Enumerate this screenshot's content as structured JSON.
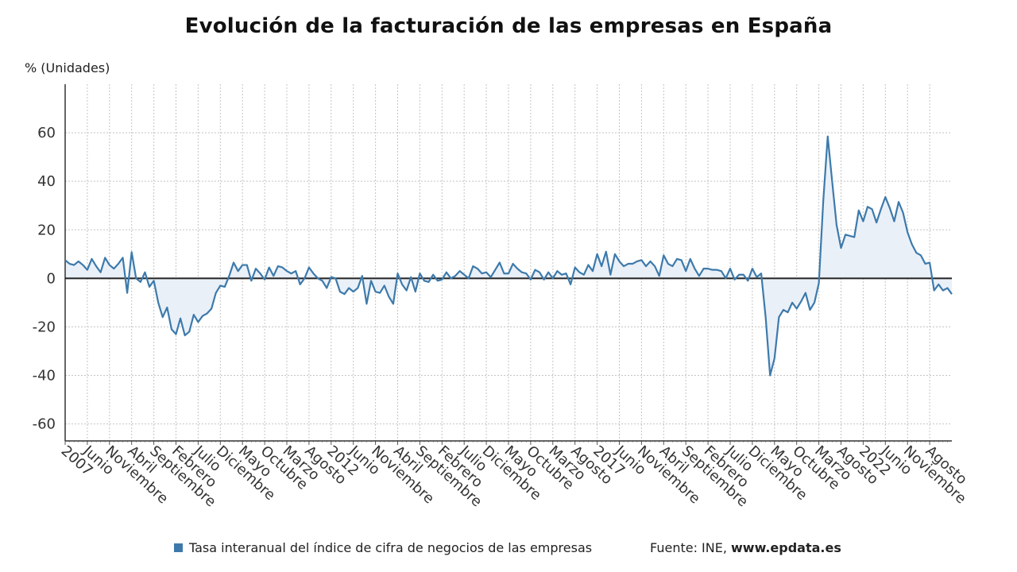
{
  "chart_data": {
    "type": "area",
    "title": "Evolución de la facturación de las empresas en España",
    "ylabel": "% (Unidades)",
    "ylim": [
      -67,
      80
    ],
    "yticks": [
      60,
      40,
      20,
      0,
      -20,
      -40,
      -60
    ],
    "grid": true,
    "start": "2007-01",
    "x_tick_labels": [
      "2007",
      "Junio",
      "Noviembre",
      "Abril",
      "Septiembre",
      "Febrero",
      "Julio",
      "Diciembre",
      "Mayo",
      "Octubre",
      "Marzo",
      "Agosto",
      "2012",
      "Junio",
      "Noviembre",
      "Abril",
      "Septiembre",
      "Febrero",
      "Julio",
      "Diciembre",
      "Mayo",
      "Octubre",
      "Marzo",
      "Agosto",
      "2017",
      "Junio",
      "Noviembre",
      "Abril",
      "Septiembre",
      "Febrero",
      "Julio",
      "Diciembre",
      "Mayo",
      "Octubre",
      "Marzo",
      "Agosto",
      "2022",
      "Junio",
      "Noviembre",
      "Agosto"
    ],
    "series": [
      {
        "name": "Tasa interanual del índice de cifra de negocios de las empresas",
        "color": "#3d7aab",
        "fill": "#eaf0f8",
        "values": [
          7.5,
          6,
          5.5,
          7,
          5.5,
          3.5,
          8,
          5,
          2.5,
          8.5,
          5.5,
          4,
          6,
          8.5,
          -6,
          10.8,
          0,
          -1.5,
          2.5,
          -3.5,
          -1,
          -10,
          -16,
          -12,
          -21,
          -23,
          -16.5,
          -23.5,
          -22,
          -15,
          -18,
          -15.5,
          -14.5,
          -12.5,
          -6,
          -3,
          -3.5,
          1,
          6.5,
          3,
          5.5,
          5.5,
          -1,
          4,
          2,
          -0.5,
          4.5,
          1,
          5,
          4.5,
          3,
          2,
          3,
          -2.5,
          0,
          4.5,
          2,
          0,
          -1,
          -4,
          0.5,
          0,
          -5.5,
          -6.5,
          -4,
          -5.5,
          -4,
          1,
          -10.5,
          -1,
          -5.5,
          -6,
          -3,
          -7.5,
          -10.5,
          2,
          -2.5,
          -5,
          0.5,
          -5.5,
          2,
          -1,
          -1.5,
          1.5,
          -1,
          -0.5,
          2.5,
          0,
          1,
          3,
          1.5,
          0,
          5,
          4,
          2,
          2.5,
          0.5,
          3.5,
          6.5,
          2,
          2,
          6,
          4,
          2.5,
          2,
          -0.5,
          3.5,
          2.5,
          -0.5,
          2.5,
          0,
          3,
          1.5,
          2,
          -2.5,
          4.5,
          2.5,
          1.5,
          5.5,
          3,
          10,
          5,
          11,
          1.5,
          10,
          7,
          5,
          6,
          6,
          7,
          7.5,
          5,
          7,
          5,
          1,
          9.5,
          6,
          5,
          8,
          7.5,
          3,
          8,
          4,
          1,
          4,
          4,
          3.5,
          3.5,
          3,
          0,
          4,
          -0.5,
          1.5,
          1.5,
          -1,
          4,
          0.5,
          2,
          -16,
          -40,
          -33,
          -16,
          -13,
          -14,
          -10,
          -12.5,
          -9.5,
          -6,
          -13,
          -10,
          -2,
          32,
          58.5,
          40,
          22,
          12.5,
          18,
          17.5,
          17,
          28,
          23.5,
          29.5,
          28.5,
          23,
          28.5,
          33.5,
          29,
          23.5,
          31.5,
          27,
          19,
          14,
          10.5,
          9.5,
          6,
          6.5,
          -5,
          -2.5,
          -5,
          -4,
          -6.5
        ]
      }
    ]
  },
  "legend": {
    "label": "Tasa interanual del índice de cifra de negocios de las empresas"
  },
  "source": {
    "prefix": "Fuente: INE, ",
    "site": "www.epdata.es"
  }
}
